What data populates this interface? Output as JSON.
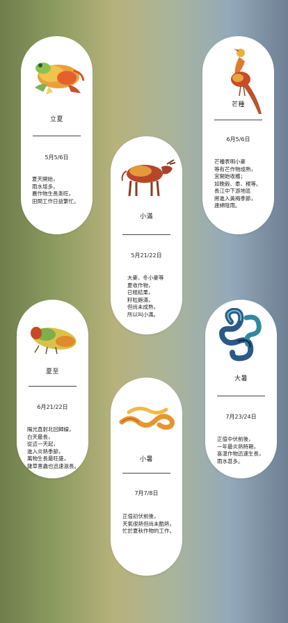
{
  "cards": [
    {
      "id": "lixia",
      "term": "立夏",
      "date": "5月5/6日",
      "lines": [
        "夏天開始，",
        "雨水增多，",
        "農作物生長漸旺，",
        "田間工作日益繁忙。"
      ],
      "art": "frog-icon"
    },
    {
      "id": "mangzhong",
      "term": "芒種",
      "date": "6月5/6日",
      "lines": [
        "芒種表明小麥",
        "等有芒作物成熟，",
        "宜開始收穫；",
        "如晚穀、黍、稷等。",
        "長江中下游地區",
        "將進入黃梅季節，",
        "連綿陰雨。"
      ],
      "art": "pheasant-icon"
    },
    {
      "id": "xiaoman",
      "term": "小滿",
      "date": "5月21/22日",
      "lines": [
        "大麥、冬小麥等",
        "夏收作物，",
        "已經結果，",
        "籽粒飽滿，",
        "但尚未成熟，",
        "所以叫小滿。"
      ],
      "art": "ox-icon"
    },
    {
      "id": "xiazhi",
      "term": "夏至",
      "date": "6月21/22日",
      "lines": [
        "陽光直射北回歸線，",
        "白天最長，",
        "從這一天起，",
        "進入炎熱季節，",
        "萬物生長最旺盛，",
        "雜草害蟲也迅速滋長。"
      ],
      "art": "cicada-icon"
    },
    {
      "id": "dashu",
      "term": "大暑",
      "date": "7月23/24日",
      "lines": [
        "正值中伏前後，",
        "一年最炎熱時期，",
        "喜溫作物迅速生長，",
        "雨水甚多。"
      ],
      "art": "snake-coil-icon"
    },
    {
      "id": "xiaoshu",
      "term": "小暑",
      "date": "7月7/8日",
      "lines": [
        "正值初伏前後，",
        "天氣很熱但尚未酷熱，",
        "忙於夏秋作物的工作。"
      ],
      "art": "snake-icon"
    }
  ]
}
